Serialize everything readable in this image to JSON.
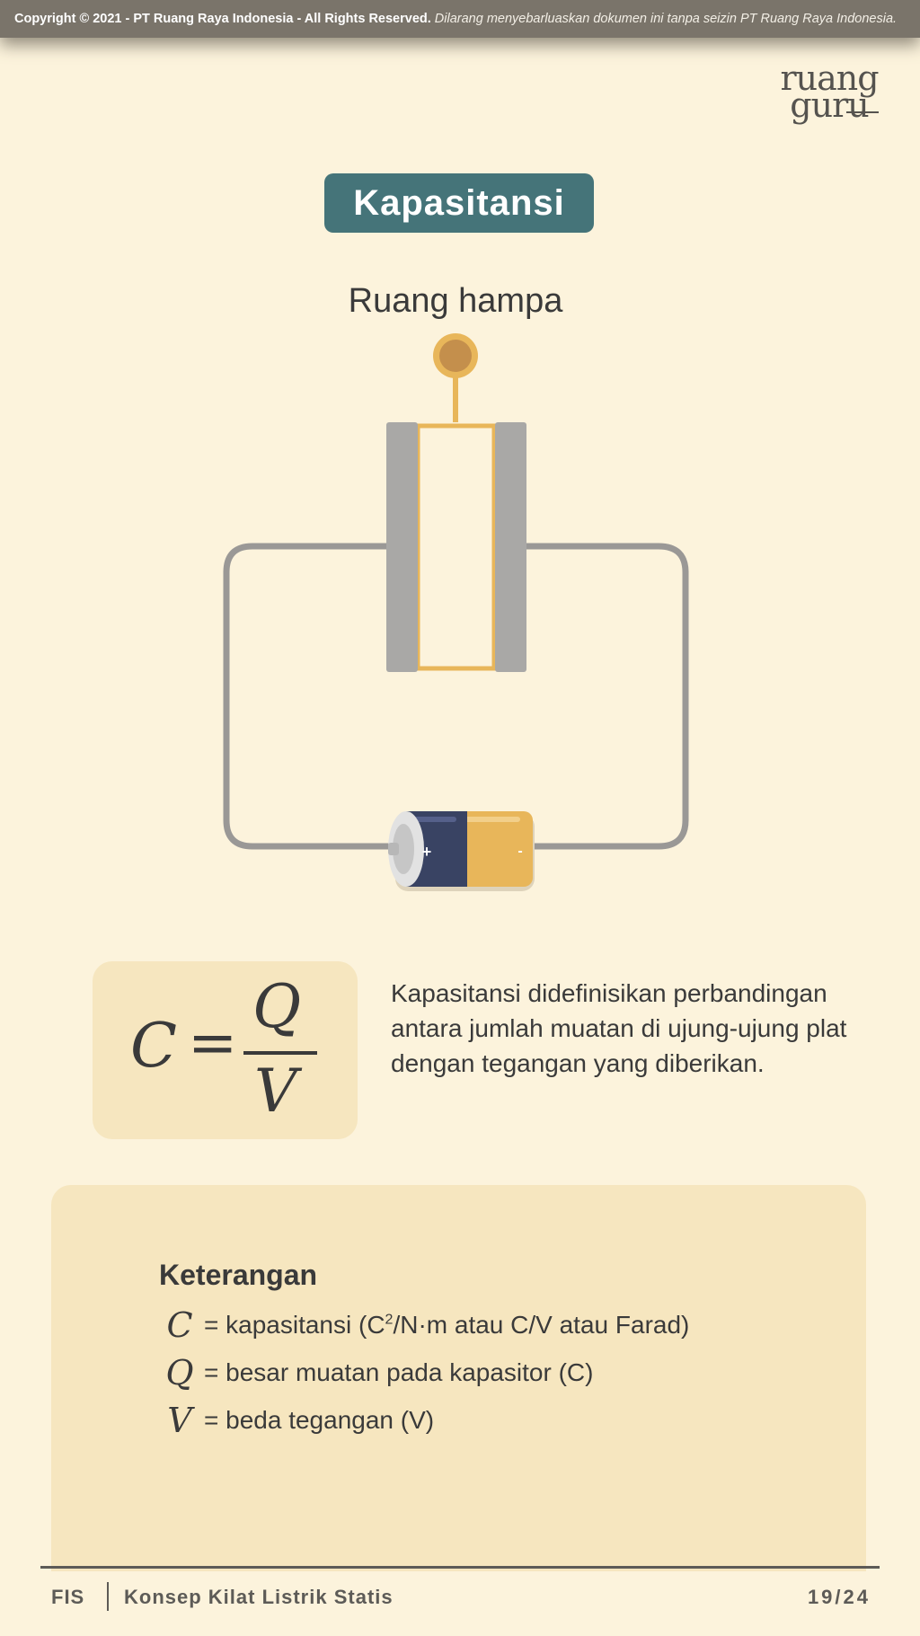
{
  "copyright": {
    "bold": "Copyright © 2021 - PT Ruang Raya Indonesia - All Rights Reserved.",
    "italic": " Dilarang menyebarluaskan dokumen ini tanpa seizin PT Ruang Raya Indonesia."
  },
  "logo": {
    "line1": "ruang",
    "line2": "guru"
  },
  "title": "Kapasitansi",
  "diagram": {
    "label": "Ruang hampa",
    "battery_plus": "+",
    "battery_minus": "-"
  },
  "formula": {
    "c": "C",
    "eq": "=",
    "q": "Q",
    "v": "V"
  },
  "description": "Kapasitansi didefinisikan perbandingan antara jumlah muatan di ujung-ujung plat dengan tegangan yang diberikan.",
  "info": {
    "title": "Keterangan",
    "rows": [
      {
        "var": "C",
        "text_pre": "= kapasitansi (C",
        "sup": "2",
        "text_post": "/N·m atau C/V atau Farad)"
      },
      {
        "var": "Q",
        "text": "= besar muatan pada kapasitor (C)"
      },
      {
        "var": "V",
        "text": "= beda tegangan (V)"
      }
    ]
  },
  "footer": {
    "subject": "FIS",
    "topic": "Konsep Kilat Listrik Statis",
    "page": "19/24"
  },
  "colors": {
    "background": "#fcf3dc",
    "title_badge": "#457479",
    "panel": "#f6e6bf",
    "battery_blue": "#394363",
    "battery_gold": "#e8b65a",
    "wire": "#9a9896",
    "plate": "#a9a8a6"
  }
}
